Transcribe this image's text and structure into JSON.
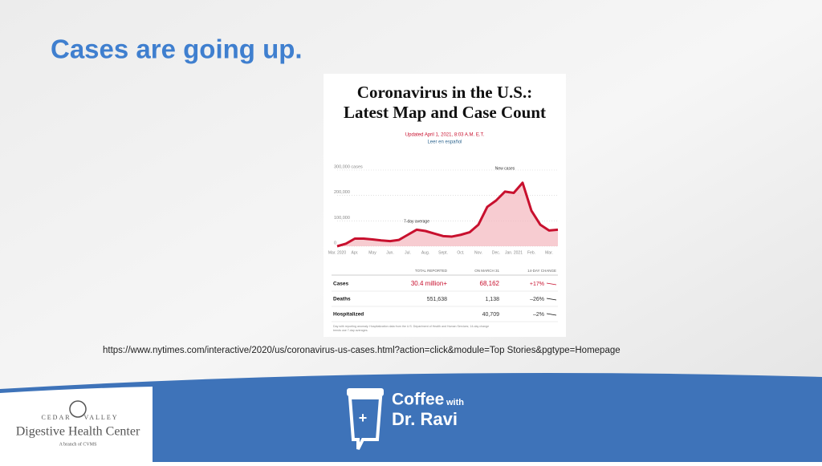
{
  "slide_title": "Cases are going up.",
  "nyt": {
    "title_line1": "Coronavirus in the U.S.:",
    "title_line2": "Latest Map and Case Count",
    "updated": "Updated April 1, 2021, 8:03 A.M. E.T.",
    "spanish": "Leer en español"
  },
  "chart_data": {
    "type": "line",
    "categories": [
      "Mar. 2020",
      null,
      "Apr.",
      null,
      "May",
      null,
      "Jun.",
      null,
      "Jul.",
      null,
      "Aug.",
      null,
      "Sept.",
      null,
      "Oct.",
      null,
      "Nov.",
      null,
      "Dec.",
      null,
      "Jan. 2021",
      null,
      "Feb.",
      null,
      "Mar.",
      null
    ],
    "series": [
      {
        "name": "7-day average",
        "color": "#c8102e",
        "values": [
          0,
          10000,
          30000,
          30000,
          27000,
          23000,
          20000,
          25000,
          45000,
          65000,
          60000,
          50000,
          40000,
          38000,
          45000,
          55000,
          85000,
          155000,
          180000,
          215000,
          210000,
          250000,
          140000,
          85000,
          62000,
          65000
        ]
      }
    ],
    "ylim": [
      0,
      300000
    ],
    "yticks": [
      {
        "value": 0,
        "label": "0"
      },
      {
        "value": 100000,
        "label": "100,000"
      },
      {
        "value": 200000,
        "label": "200,000"
      },
      {
        "value": 300000,
        "label": "300,000 cases"
      }
    ],
    "grid": true,
    "annotations": [
      "7-day average",
      "New cases"
    ]
  },
  "table": {
    "headers": [
      "TOTAL REPORTED",
      "ON MARCH 31",
      "14-DAY CHANGE"
    ],
    "rows": [
      {
        "label": "Cases",
        "total": "30.4 million+",
        "day": "68,162",
        "change": "+17%"
      },
      {
        "label": "Deaths",
        "total": "551,638",
        "day": "1,138",
        "change": "–26%"
      },
      {
        "label": "Hospitalized",
        "day": "40,709",
        "change": "–2%"
      }
    ],
    "footnote_line1": "Day with reporting anomaly. Hospitalization data from the U.S. Department of Health and Human Services; 14-day change",
    "footnote_line2": "trends use 7-day averages."
  },
  "url": "https://www.nytimes.com/interactive/2020/us/coronavirus-us-cases.html?action=click&module=Top Stories&pgtype=Homepage",
  "footer": {
    "coffee": "Coffee",
    "with": "with",
    "name": "Dr. Ravi",
    "logo_top_left": "CEDAR",
    "logo_top_right": "VALLEY",
    "logo_main": "Digestive Health Center",
    "logo_sub": "A branch of CVMS"
  }
}
